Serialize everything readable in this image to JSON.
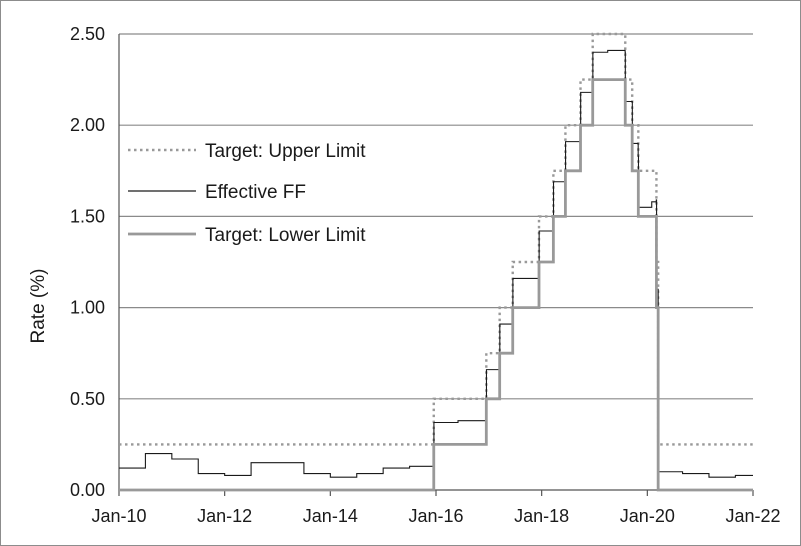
{
  "chart_data": {
    "type": "line",
    "title": "",
    "xlabel": "",
    "ylabel": "Rate (%)",
    "xlim": [
      "2010-01",
      "2022-01"
    ],
    "ylim": [
      0,
      2.5
    ],
    "grid": "horizontal",
    "legend_position": "upper-left",
    "x_ticks": [
      "Jan-10",
      "Jan-12",
      "Jan-14",
      "Jan-16",
      "Jan-18",
      "Jan-20",
      "Jan-22"
    ],
    "y_ticks": [
      "0.00",
      "0.50",
      "1.00",
      "1.50",
      "2.00",
      "2.50"
    ],
    "series": [
      {
        "name": "Target: Upper Limit",
        "style": "dotted",
        "color": "#999999",
        "x": [
          "2010-01",
          "2015-12-16",
          "2016-12-14",
          "2017-03-15",
          "2017-06-14",
          "2017-12-13",
          "2018-03-21",
          "2018-06-13",
          "2018-09-26",
          "2018-12-19",
          "2019-07-31",
          "2019-09-18",
          "2019-10-30",
          "2020-03-03",
          "2020-03-15",
          "2022-01"
        ],
        "values": [
          0.25,
          0.5,
          0.75,
          1.0,
          1.25,
          1.5,
          1.75,
          2.0,
          2.25,
          2.5,
          2.25,
          2.0,
          1.75,
          1.25,
          0.25,
          0.25
        ]
      },
      {
        "name": "Effective FF",
        "style": "solid",
        "color": "#1a1a1a",
        "x": [
          "2010-01",
          "2010-07",
          "2011-01",
          "2011-07",
          "2012-01",
          "2012-07",
          "2013-01",
          "2013-07",
          "2014-01",
          "2014-07",
          "2015-01",
          "2015-07",
          "2015-12-10",
          "2015-12-17",
          "2016-06",
          "2016-12-10",
          "2016-12-15",
          "2017-03-10",
          "2017-03-16",
          "2017-06-10",
          "2017-06-15",
          "2017-12-10",
          "2017-12-14",
          "2018-03-20",
          "2018-03-22",
          "2018-06-10",
          "2018-06-14",
          "2018-09-25",
          "2018-09-27",
          "2018-12-18",
          "2018-12-20",
          "2019-04",
          "2019-07-30",
          "2019-08-01",
          "2019-09-17",
          "2019-09-19",
          "2019-10-29",
          "2019-10-31",
          "2020-02",
          "2020-03-02",
          "2020-03-04",
          "2020-03-15",
          "2020-03-17",
          "2020-09",
          "2021-03",
          "2021-09",
          "2022-01"
        ],
        "values": [
          0.12,
          0.2,
          0.17,
          0.09,
          0.08,
          0.15,
          0.15,
          0.09,
          0.07,
          0.09,
          0.12,
          0.13,
          0.13,
          0.37,
          0.38,
          0.41,
          0.66,
          0.66,
          0.91,
          0.91,
          1.16,
          1.16,
          1.42,
          1.42,
          1.69,
          1.7,
          1.91,
          1.91,
          2.18,
          2.2,
          2.4,
          2.41,
          2.4,
          2.13,
          2.13,
          1.9,
          1.83,
          1.55,
          1.58,
          1.59,
          1.1,
          0.65,
          0.1,
          0.09,
          0.07,
          0.08,
          0.08
        ]
      },
      {
        "name": "Target: Lower Limit",
        "style": "solid",
        "color": "#999999",
        "x": [
          "2010-01",
          "2015-12-16",
          "2016-12-14",
          "2017-03-15",
          "2017-06-14",
          "2017-12-13",
          "2018-03-21",
          "2018-06-13",
          "2018-09-26",
          "2018-12-19",
          "2019-07-31",
          "2019-09-18",
          "2019-10-30",
          "2020-03-03",
          "2020-03-15",
          "2022-01"
        ],
        "values": [
          0.0,
          0.25,
          0.5,
          0.75,
          1.0,
          1.25,
          1.5,
          1.75,
          2.0,
          2.25,
          2.0,
          1.75,
          1.5,
          1.0,
          0.0,
          0.0
        ]
      }
    ]
  }
}
